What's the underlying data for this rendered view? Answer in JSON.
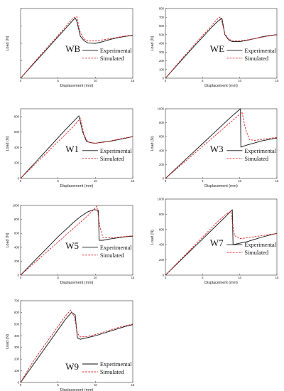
{
  "chart_data": [
    {
      "type": "line",
      "panel_label": "WB",
      "xlabel": "Displacement (mm)",
      "ylabel": "Load (N)",
      "xlim": [
        0,
        15
      ],
      "ylim": [
        0,
        800
      ],
      "xticks": [
        0,
        5,
        10,
        15
      ],
      "yticks": [
        0,
        200,
        400,
        600,
        800
      ],
      "yticks_shown": false,
      "legend_position": "center-right",
      "series": [
        {
          "name": "Experimental",
          "color": "#111111",
          "style": "solid",
          "x": [
            0,
            1,
            2,
            3,
            4,
            5,
            6,
            7,
            7.3,
            7.5,
            8.0,
            8.5,
            9.0,
            10,
            11,
            12,
            13,
            14,
            15
          ],
          "y": [
            0,
            95,
            190,
            285,
            380,
            475,
            570,
            665,
            690,
            660,
            480,
            430,
            405,
            400,
            420,
            445,
            465,
            480,
            490
          ]
        },
        {
          "name": "Simulated",
          "color": "#dd2222",
          "style": "dashed",
          "x": [
            0,
            1,
            2,
            3,
            4,
            5,
            6,
            7,
            7.5,
            8.0,
            8.5,
            9.0,
            10,
            11,
            12,
            13,
            14,
            15
          ],
          "y": [
            0,
            100,
            200,
            300,
            395,
            490,
            590,
            690,
            710,
            520,
            450,
            430,
            430,
            440,
            455,
            470,
            485,
            495
          ]
        }
      ]
    },
    {
      "type": "line",
      "panel_label": "WE",
      "xlabel": "Displacement (mm)",
      "ylabel": "Load (N)",
      "xlim": [
        0,
        15
      ],
      "ylim": [
        0,
        800
      ],
      "xticks": [
        0,
        5,
        10,
        15
      ],
      "yticks": [
        0,
        100,
        200,
        300,
        400,
        500,
        600,
        700,
        800
      ],
      "yticks_shown": true,
      "legend_position": "center-right",
      "series": [
        {
          "name": "Experimental",
          "color": "#111111",
          "style": "solid",
          "x": [
            0,
            1,
            2,
            3,
            4,
            5,
            6,
            7,
            7.6,
            8.0,
            8.5,
            9.0,
            10,
            11,
            12,
            13,
            14,
            15
          ],
          "y": [
            0,
            95,
            190,
            285,
            380,
            470,
            565,
            650,
            690,
            500,
            440,
            420,
            420,
            435,
            455,
            475,
            490,
            500
          ]
        },
        {
          "name": "Simulated",
          "color": "#dd2222",
          "style": "dashed",
          "x": [
            0,
            1,
            2,
            3,
            4,
            5,
            6,
            7,
            7.4,
            8.0,
            8.5,
            9.0,
            10,
            11,
            12,
            13,
            14,
            15
          ],
          "y": [
            0,
            100,
            200,
            300,
            395,
            490,
            585,
            680,
            705,
            510,
            450,
            430,
            430,
            440,
            455,
            470,
            485,
            500
          ]
        }
      ]
    },
    {
      "type": "line",
      "panel_label": "W1",
      "xlabel": "Displacement (mm)",
      "ylabel": "Load (N)",
      "xlim": [
        0,
        15
      ],
      "ylim": [
        0,
        900
      ],
      "xticks": [
        0,
        5,
        10,
        15
      ],
      "yticks": [
        0,
        200,
        400,
        600,
        800
      ],
      "yticks_shown": true,
      "legend_position": "center-right",
      "series": [
        {
          "name": "Experimental",
          "color": "#111111",
          "style": "solid",
          "x": [
            0,
            1,
            2,
            3,
            4,
            5,
            6,
            7,
            7.8,
            8.3,
            8.8,
            9.5,
            10,
            11,
            12,
            13,
            14,
            15
          ],
          "y": [
            0,
            105,
            210,
            315,
            420,
            525,
            630,
            730,
            810,
            600,
            480,
            460,
            455,
            470,
            480,
            500,
            520,
            540
          ]
        },
        {
          "name": "Simulated",
          "color": "#dd2222",
          "style": "dashed",
          "x": [
            0,
            1,
            2,
            3,
            4,
            5,
            6,
            7,
            8.0,
            8.5,
            9.0,
            10,
            11,
            12,
            13,
            14,
            15
          ],
          "y": [
            0,
            95,
            190,
            285,
            380,
            475,
            570,
            665,
            780,
            560,
            470,
            455,
            465,
            485,
            505,
            525,
            540
          ]
        }
      ]
    },
    {
      "type": "line",
      "panel_label": "W3",
      "xlabel": "Displacement (mm)",
      "ylabel": "Load (N)",
      "xlim": [
        0,
        15
      ],
      "ylim": [
        0,
        1000
      ],
      "xticks": [
        0,
        5,
        10,
        15
      ],
      "yticks": [
        0,
        200,
        400,
        600,
        800,
        1000
      ],
      "yticks_shown": true,
      "legend_position": "center-right",
      "series": [
        {
          "name": "Experimental",
          "color": "#111111",
          "style": "solid",
          "x": [
            0,
            1,
            2,
            3,
            4,
            5,
            6,
            7,
            8,
            9,
            10.1,
            10.15,
            11,
            12,
            13,
            14,
            15
          ],
          "y": [
            0,
            100,
            200,
            300,
            400,
            500,
            600,
            700,
            800,
            900,
            1000,
            450,
            480,
            510,
            540,
            560,
            580
          ]
        },
        {
          "name": "Simulated",
          "color": "#dd2222",
          "style": "dashed",
          "x": [
            0,
            1,
            2,
            3,
            4,
            5,
            6,
            7,
            8,
            9,
            10.3,
            10.8,
            11.3,
            12,
            13,
            14,
            15
          ],
          "y": [
            0,
            92,
            184,
            276,
            368,
            460,
            552,
            644,
            736,
            828,
            950,
            700,
            560,
            545,
            560,
            575,
            590
          ]
        }
      ]
    },
    {
      "type": "line",
      "panel_label": "W5",
      "xlabel": "Displacement (mm)",
      "ylabel": "Load (N)",
      "xlim": [
        0,
        15
      ],
      "ylim": [
        0,
        1000
      ],
      "xticks": [
        0,
        5,
        10,
        15
      ],
      "yticks": [
        0,
        200,
        400,
        600,
        800,
        1000
      ],
      "yticks_shown": true,
      "legend_position": "center-right",
      "series": [
        {
          "name": "Experimental",
          "color": "#111111",
          "style": "solid",
          "x": [
            0,
            1,
            2,
            3,
            4,
            5,
            6,
            7,
            8,
            9,
            9.8,
            10.4,
            10.5,
            11,
            12,
            13,
            14,
            15
          ],
          "y": [
            0,
            110,
            220,
            330,
            440,
            550,
            650,
            750,
            840,
            910,
            940,
            930,
            500,
            500,
            520,
            535,
            550,
            560
          ]
        },
        {
          "name": "Simulated",
          "color": "#dd2222",
          "style": "dashed",
          "x": [
            0,
            1,
            2,
            3,
            4,
            5,
            6,
            7,
            8,
            9,
            10.2,
            10.6,
            11,
            12,
            13,
            14,
            15
          ],
          "y": [
            0,
            95,
            190,
            285,
            380,
            475,
            570,
            665,
            760,
            855,
            990,
            700,
            540,
            535,
            545,
            555,
            565
          ]
        }
      ]
    },
    {
      "type": "line",
      "panel_label": "W7",
      "xlabel": "Displacement (mm)",
      "ylabel": "Load (N)",
      "xlim": [
        0,
        15
      ],
      "ylim": [
        0,
        1000
      ],
      "xticks": [
        0,
        5,
        10,
        15
      ],
      "yticks": [
        0,
        200,
        400,
        600,
        800,
        1000
      ],
      "yticks_shown": true,
      "legend_position": "center-right",
      "series": [
        {
          "name": "Experimental",
          "color": "#111111",
          "style": "solid",
          "x": [
            0,
            1,
            2,
            3,
            4,
            5,
            6,
            7,
            8,
            9.0,
            9.1,
            10,
            11,
            12,
            13,
            14,
            15
          ],
          "y": [
            0,
            95,
            190,
            285,
            380,
            475,
            570,
            665,
            760,
            860,
            400,
            420,
            440,
            470,
            500,
            525,
            550
          ]
        },
        {
          "name": "Simulated",
          "color": "#dd2222",
          "style": "dashed",
          "x": [
            0,
            1,
            2,
            3,
            4,
            5,
            6,
            7,
            8,
            8.8,
            9.3,
            10,
            11,
            12,
            13,
            14,
            15
          ],
          "y": [
            0,
            100,
            200,
            300,
            400,
            500,
            600,
            700,
            790,
            840,
            520,
            480,
            490,
            505,
            520,
            535,
            545
          ]
        }
      ]
    },
    {
      "type": "line",
      "panel_label": "W9",
      "xlabel": "Displacement (mm)",
      "ylabel": "Load (N)",
      "xlim": [
        0,
        15
      ],
      "ylim": [
        0,
        700
      ],
      "xticks": [
        0,
        5,
        10,
        15
      ],
      "yticks": [
        0,
        100,
        200,
        300,
        400,
        500,
        600,
        700
      ],
      "yticks_shown": true,
      "legend_position": "bottom-right",
      "series": [
        {
          "name": "Experimental",
          "color": "#111111",
          "style": "solid",
          "x": [
            0,
            1,
            2,
            3,
            4,
            5,
            6,
            6.8,
            7.3,
            7.6,
            8,
            9,
            10,
            11,
            12,
            13,
            14,
            15
          ],
          "y": [
            0,
            90,
            180,
            270,
            360,
            450,
            540,
            600,
            580,
            380,
            370,
            385,
            400,
            420,
            440,
            460,
            480,
            495
          ]
        },
        {
          "name": "Simulated",
          "color": "#dd2222",
          "style": "dashed",
          "x": [
            0,
            1,
            2,
            3,
            4,
            5,
            6,
            6.7,
            7.2,
            7.6,
            8,
            9,
            10,
            11,
            12,
            13,
            14,
            15
          ],
          "y": [
            0,
            110,
            210,
            300,
            390,
            480,
            570,
            620,
            560,
            420,
            390,
            395,
            410,
            430,
            450,
            470,
            485,
            500
          ]
        }
      ]
    }
  ]
}
